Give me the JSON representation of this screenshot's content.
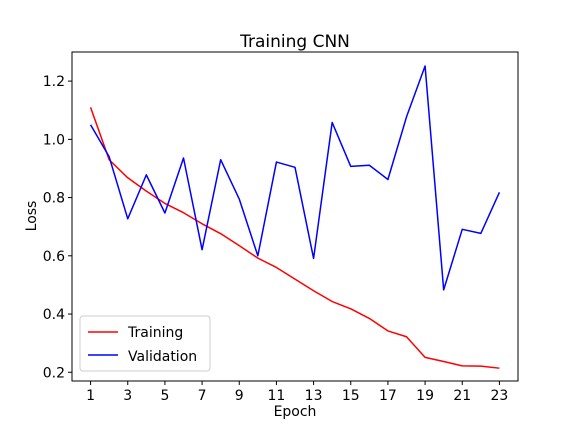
{
  "chart_data": {
    "type": "line",
    "title": "Training CNN",
    "xlabel": "Epoch",
    "ylabel": "Loss",
    "x": [
      1,
      2,
      3,
      4,
      5,
      6,
      7,
      8,
      9,
      10,
      11,
      12,
      13,
      14,
      15,
      16,
      17,
      18,
      19,
      20,
      21,
      22,
      23
    ],
    "xticks": [
      1,
      3,
      5,
      7,
      9,
      11,
      13,
      15,
      17,
      19,
      21,
      23
    ],
    "yticks": [
      0.2,
      0.4,
      0.6,
      0.8,
      1.0,
      1.2
    ],
    "xlim": [
      0,
      24
    ],
    "ylim": [
      0.17,
      1.3
    ],
    "grid": false,
    "legend": "lower-left",
    "series": [
      {
        "name": "Training",
        "color": "#ff0000",
        "values": [
          1.11,
          0.93,
          0.868,
          0.822,
          0.78,
          0.748,
          0.71,
          0.676,
          0.635,
          0.592,
          0.56,
          0.52,
          0.48,
          0.443,
          0.418,
          0.385,
          0.342,
          0.322,
          0.251,
          0.237,
          0.222,
          0.221,
          0.214
        ]
      },
      {
        "name": "Validation",
        "color": "#0000ff",
        "values": [
          1.05,
          0.94,
          0.727,
          0.878,
          0.747,
          0.936,
          0.621,
          0.93,
          0.795,
          0.6,
          0.922,
          0.904,
          0.591,
          1.058,
          0.907,
          0.911,
          0.862,
          1.077,
          1.252,
          0.483,
          0.691,
          0.677,
          0.818
        ]
      }
    ]
  }
}
